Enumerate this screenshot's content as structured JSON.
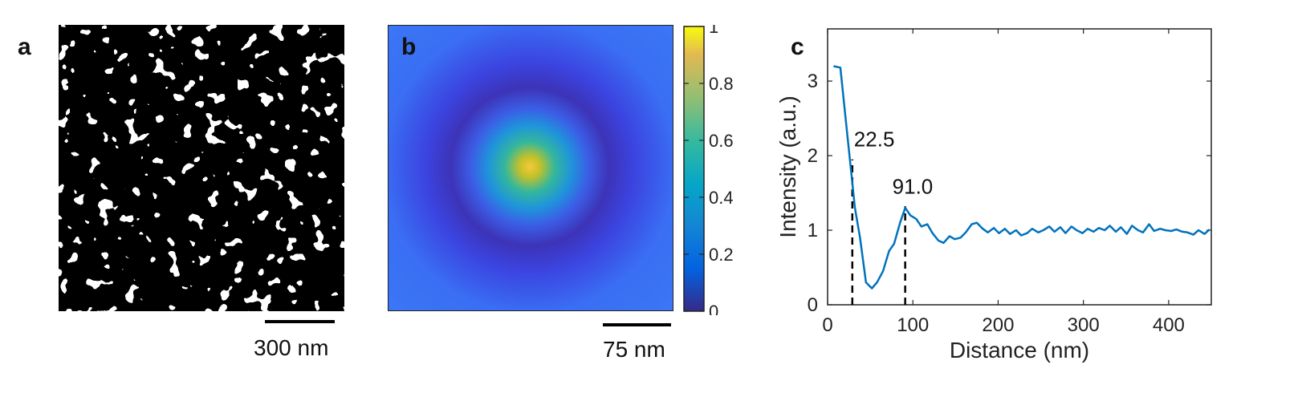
{
  "panels": {
    "a": {
      "letter": "a",
      "scalebar_label": "300 nm"
    },
    "b": {
      "letter": "b",
      "scalebar_label": "75 nm",
      "colorbar_ticks": [
        "0",
        "0.2",
        "0.4",
        "0.6",
        "0.8",
        "1"
      ]
    },
    "c": {
      "letter": "c"
    }
  },
  "chart_data": [
    {
      "type": "heatmap",
      "panel": "b",
      "colormap": "parula",
      "colorbar_range": [
        0,
        1
      ],
      "colorbar_ticks": [
        0,
        0.2,
        0.4,
        0.6,
        0.8,
        1
      ],
      "peak_value": 1,
      "description_values": {
        "center": 1,
        "ring_minimum": 0.05,
        "background": 0.2
      }
    },
    {
      "type": "line",
      "panel": "c",
      "xlabel": "Distance (nm)",
      "ylabel": "Intensity (a.u.)",
      "xlim": [
        0,
        450
      ],
      "ylim": [
        0,
        3.7
      ],
      "xticks": [
        0,
        100,
        200,
        300,
        400
      ],
      "yticks": [
        0,
        1,
        2,
        3
      ],
      "grid": false,
      "line_color": "#0072BD",
      "annotations": [
        {
          "text": "22.5",
          "x": 29,
          "y": 1.95
        },
        {
          "text": "91.0",
          "x": 91,
          "y": 1.32
        }
      ],
      "x": [
        7,
        15,
        22,
        28,
        32,
        38,
        45,
        52,
        58,
        65,
        72,
        78,
        85,
        91,
        97,
        104,
        110,
        117,
        123,
        130,
        136,
        143,
        149,
        156,
        162,
        169,
        175,
        182,
        188,
        195,
        201,
        208,
        214,
        221,
        227,
        234,
        240,
        247,
        253,
        260,
        266,
        273,
        279,
        286,
        292,
        299,
        305,
        312,
        318,
        325,
        331,
        338,
        344,
        351,
        357,
        364,
        370,
        377,
        383,
        390,
        396,
        403,
        409,
        416,
        422,
        429,
        435,
        442,
        448
      ],
      "y": [
        3.2,
        3.18,
        2.4,
        1.75,
        1.3,
        0.9,
        0.3,
        0.22,
        0.3,
        0.45,
        0.72,
        0.82,
        1.1,
        1.3,
        1.2,
        1.15,
        1.05,
        1.08,
        0.96,
        0.86,
        0.83,
        0.92,
        0.88,
        0.9,
        0.97,
        1.08,
        1.1,
        1.02,
        0.97,
        1.03,
        0.96,
        1.02,
        0.95,
        1.0,
        0.93,
        0.96,
        1.02,
        0.97,
        1.0,
        1.05,
        0.98,
        1.04,
        0.96,
        1.05,
        1.0,
        0.96,
        1.02,
        0.98,
        1.03,
        1.0,
        1.06,
        0.98,
        1.04,
        0.95,
        1.06,
        1.0,
        0.97,
        1.08,
        0.99,
        1.02,
        1.0,
        0.99,
        1.01,
        0.98,
        0.97,
        0.94,
        1.0,
        0.95,
        1.01
      ]
    }
  ]
}
